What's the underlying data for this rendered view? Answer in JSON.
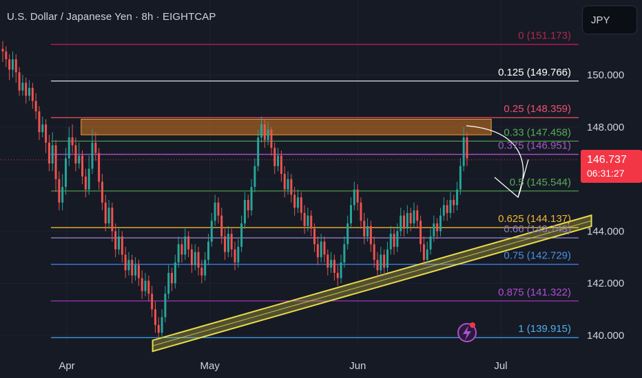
{
  "header": {
    "title": "U.S. Dollar / Japanese Yen · 8h · EIGHTCAP",
    "currency_button": "JPY"
  },
  "price_badge": {
    "price": "146.737",
    "countdown": "06:31:27",
    "color": "#f23645"
  },
  "colors": {
    "up_candle": "#26a69a",
    "down_candle": "#ef5350",
    "background": "#161a25",
    "zone": "#d4781f",
    "trendline": "#e8dc4a"
  },
  "chart_data": {
    "type": "candlestick",
    "timeframe": "8h",
    "ylim": [
      139.3,
      152.3
    ],
    "y_ticks": [
      "150.000",
      "148.000",
      "146.000",
      "144.000",
      "142.000",
      "140.000"
    ],
    "y_tick_values": [
      150,
      148,
      146,
      144,
      142,
      140
    ],
    "x_ticks": [
      "Apr",
      "May",
      "Jun",
      "Jul"
    ],
    "x_tick_days": [
      0,
      30,
      61,
      91
    ],
    "fib_levels": [
      {
        "ratio": "0",
        "price": "151.173",
        "label": "0 (151.173)",
        "value": 151.173,
        "color": "#c2185b",
        "label_color": "#b0294d"
      },
      {
        "ratio": "0.125",
        "price": "149.766",
        "label": "0.125 (149.766)",
        "value": 149.766,
        "color": "#e6e6e6",
        "label_color": "#ffffff"
      },
      {
        "ratio": "0.25",
        "price": "148.359",
        "label": "0.25 (148.359)",
        "value": 148.359,
        "color": "#e04b60",
        "label_color": "#f0506e"
      },
      {
        "ratio": "0.33",
        "price": "147.458",
        "label": "0.33 (147.458)",
        "value": 147.458,
        "color": "#4c9b4c",
        "label_color": "#5aa95a"
      },
      {
        "ratio": "0.375",
        "price": "146.951",
        "label": "0.375 (146.951)",
        "value": 146.951,
        "color": "#b04fd0",
        "label_color": "#a35bc7"
      },
      {
        "ratio": "0.5",
        "price": "145.544",
        "label": "0.5 (145.544)",
        "value": 145.544,
        "color": "#4c9b4c",
        "label_color": "#5aa95a"
      },
      {
        "ratio": "0.625",
        "price": "144.137",
        "label": "0.625 (144.137)",
        "value": 144.137,
        "color": "#f2b632",
        "label_color": "#f2b632"
      },
      {
        "ratio": "0.66",
        "price": "143.743",
        "label": "0.66 (143.743)",
        "value": 143.743,
        "color": "#9e8ad6",
        "label_color": "#8e7cc3"
      },
      {
        "ratio": "0.75",
        "price": "142.729",
        "label": "0.75 (142.729)",
        "value": 142.729,
        "color": "#3f7fe0",
        "label_color": "#4a90e2"
      },
      {
        "ratio": "0.875",
        "price": "141.322",
        "label": "0.875 (141.322)",
        "value": 141.322,
        "color": "#a035b5",
        "label_color": "#b04fd0"
      },
      {
        "ratio": "1",
        "price": "139.915",
        "label": "1 (139.915)",
        "value": 139.915,
        "color": "#3fa9f5",
        "label_color": "#4fb0ef"
      }
    ],
    "resistance_zone": {
      "from": 147.7,
      "to": 148.3,
      "x_start_day": 3,
      "x_end_day": 89
    },
    "trendline": {
      "start": {
        "day": 18,
        "price": 139.6
      },
      "end": {
        "day": 110,
        "price": 144.4
      }
    },
    "current_price": 146.737,
    "projection": "arrow from ~147.9 curving down to ~145.2",
    "candles": [
      [
        151.0,
        150.9,
        151.3,
        150.5
      ],
      [
        150.9,
        150.6,
        151.1,
        150.3
      ],
      [
        150.6,
        150.2,
        150.8,
        149.8
      ],
      [
        150.2,
        150.6,
        150.9,
        149.9
      ],
      [
        150.6,
        150.1,
        150.8,
        149.7
      ],
      [
        150.1,
        149.4,
        150.3,
        149.2
      ],
      [
        149.4,
        149.7,
        150.0,
        149.2
      ],
      [
        149.7,
        149.2,
        149.9,
        148.9
      ],
      [
        149.2,
        149.5,
        149.8,
        149.0
      ],
      [
        149.5,
        149.0,
        149.7,
        148.7
      ],
      [
        149.0,
        148.6,
        149.3,
        148.3
      ],
      [
        148.6,
        147.8,
        148.8,
        147.5
      ],
      [
        147.8,
        148.1,
        148.4,
        147.6
      ],
      [
        148.1,
        147.4,
        148.3,
        147.0
      ],
      [
        147.4,
        146.6,
        147.7,
        146.3
      ],
      [
        146.6,
        147.3,
        147.8,
        146.3
      ],
      [
        147.3,
        146.0,
        147.5,
        145.5
      ],
      [
        146.0,
        145.1,
        146.3,
        144.8
      ],
      [
        145.1,
        145.7,
        146.2,
        144.8
      ],
      [
        145.7,
        146.8,
        147.2,
        145.4
      ],
      [
        146.8,
        147.6,
        148.0,
        146.5
      ],
      [
        147.6,
        147.3,
        148.1,
        147.0
      ],
      [
        147.3,
        146.6,
        147.6,
        146.3
      ],
      [
        146.6,
        146.9,
        147.4,
        146.4
      ],
      [
        146.9,
        146.1,
        147.1,
        145.8
      ],
      [
        146.1,
        145.6,
        146.4,
        145.3
      ],
      [
        145.6,
        146.4,
        146.9,
        145.4
      ],
      [
        146.4,
        147.4,
        147.9,
        146.2
      ],
      [
        147.4,
        147.0,
        147.8,
        146.7
      ],
      [
        147.0,
        145.9,
        147.2,
        145.6
      ],
      [
        145.9,
        145.1,
        146.2,
        144.8
      ],
      [
        145.1,
        144.3,
        145.4,
        144.0
      ],
      [
        144.3,
        144.9,
        145.2,
        144.1
      ],
      [
        144.9,
        144.0,
        145.1,
        143.6
      ],
      [
        144.0,
        143.3,
        144.3,
        143.0
      ],
      [
        143.3,
        143.8,
        144.1,
        143.1
      ],
      [
        143.8,
        143.1,
        144.0,
        142.8
      ],
      [
        143.1,
        142.5,
        143.4,
        142.2
      ],
      [
        142.5,
        142.9,
        143.2,
        142.3
      ],
      [
        142.9,
        142.3,
        143.1,
        142.0
      ],
      [
        142.3,
        142.7,
        143.0,
        142.1
      ],
      [
        142.7,
        142.2,
        142.9,
        141.9
      ],
      [
        142.2,
        141.7,
        142.5,
        141.4
      ],
      [
        141.7,
        142.1,
        142.4,
        141.5
      ],
      [
        142.1,
        141.6,
        142.3,
        141.3
      ],
      [
        141.6,
        141.0,
        141.9,
        140.7
      ],
      [
        141.0,
        140.4,
        141.3,
        140.1
      ],
      [
        140.4,
        140.1,
        140.7,
        139.9
      ],
      [
        140.1,
        140.7,
        141.0,
        139.9
      ],
      [
        140.7,
        141.6,
        141.9,
        140.5
      ],
      [
        141.6,
        142.4,
        142.7,
        141.4
      ],
      [
        142.4,
        142.0,
        142.6,
        141.7
      ],
      [
        142.0,
        142.8,
        143.1,
        141.8
      ],
      [
        142.8,
        143.5,
        143.8,
        142.6
      ],
      [
        143.5,
        143.1,
        143.7,
        142.8
      ],
      [
        143.1,
        143.8,
        144.1,
        142.9
      ],
      [
        143.8,
        143.3,
        144.0,
        143.0
      ],
      [
        143.3,
        142.7,
        143.5,
        142.4
      ],
      [
        142.7,
        143.2,
        143.5,
        142.5
      ],
      [
        143.2,
        142.6,
        143.4,
        142.3
      ],
      [
        142.6,
        142.3,
        142.9,
        142.0
      ],
      [
        142.3,
        142.9,
        143.2,
        142.1
      ],
      [
        142.9,
        143.6,
        143.9,
        142.7
      ],
      [
        143.6,
        144.4,
        144.7,
        143.4
      ],
      [
        144.4,
        145.1,
        145.4,
        144.2
      ],
      [
        145.1,
        144.6,
        145.3,
        144.3
      ],
      [
        144.6,
        143.8,
        144.9,
        143.5
      ],
      [
        143.8,
        143.2,
        144.1,
        142.9
      ],
      [
        143.2,
        143.9,
        144.2,
        143.0
      ],
      [
        143.9,
        143.3,
        144.1,
        143.0
      ],
      [
        143.3,
        142.8,
        143.6,
        142.5
      ],
      [
        142.8,
        143.4,
        143.7,
        142.6
      ],
      [
        143.4,
        144.3,
        144.6,
        143.2
      ],
      [
        144.3,
        145.2,
        145.5,
        144.1
      ],
      [
        145.2,
        144.8,
        145.4,
        144.5
      ],
      [
        144.8,
        145.7,
        146.0,
        144.6
      ],
      [
        145.7,
        146.5,
        146.8,
        145.5
      ],
      [
        146.5,
        147.6,
        147.9,
        146.3
      ],
      [
        147.6,
        148.1,
        148.4,
        147.4
      ],
      [
        148.1,
        147.5,
        148.3,
        147.2
      ],
      [
        147.5,
        147.9,
        148.2,
        147.3
      ],
      [
        147.9,
        147.2,
        148.0,
        146.9
      ],
      [
        147.2,
        146.5,
        147.4,
        146.2
      ],
      [
        146.5,
        146.9,
        147.2,
        146.3
      ],
      [
        146.9,
        146.2,
        147.1,
        145.9
      ],
      [
        146.2,
        145.6,
        146.5,
        145.3
      ],
      [
        145.6,
        146.0,
        146.3,
        145.4
      ],
      [
        146.0,
        145.4,
        146.2,
        145.1
      ],
      [
        145.4,
        144.9,
        145.7,
        144.6
      ],
      [
        144.9,
        145.3,
        145.6,
        144.7
      ],
      [
        145.3,
        144.7,
        145.5,
        144.4
      ],
      [
        144.7,
        144.2,
        145.0,
        143.9
      ],
      [
        144.2,
        144.6,
        144.9,
        144.0
      ],
      [
        144.6,
        144.1,
        144.8,
        143.8
      ],
      [
        144.1,
        143.5,
        144.3,
        143.2
      ],
      [
        143.5,
        143.0,
        143.8,
        142.7
      ],
      [
        143.0,
        143.6,
        143.9,
        142.8
      ],
      [
        143.6,
        143.1,
        143.8,
        142.8
      ],
      [
        143.1,
        142.6,
        143.3,
        142.3
      ],
      [
        142.6,
        142.9,
        143.2,
        142.4
      ],
      [
        142.9,
        142.4,
        143.1,
        142.1
      ],
      [
        142.4,
        142.2,
        142.7,
        141.9
      ],
      [
        142.2,
        142.8,
        143.1,
        142.0
      ],
      [
        142.8,
        143.5,
        143.8,
        142.6
      ],
      [
        143.5,
        144.3,
        144.6,
        143.3
      ],
      [
        144.3,
        145.0,
        145.3,
        144.1
      ],
      [
        145.0,
        145.6,
        145.9,
        144.8
      ],
      [
        145.6,
        145.1,
        145.8,
        144.8
      ],
      [
        145.1,
        144.4,
        145.3,
        144.1
      ],
      [
        144.4,
        143.8,
        144.7,
        143.5
      ],
      [
        143.8,
        144.2,
        144.5,
        143.6
      ],
      [
        144.2,
        143.5,
        144.4,
        143.2
      ],
      [
        143.5,
        142.9,
        143.8,
        142.6
      ],
      [
        142.9,
        142.5,
        143.2,
        142.2
      ],
      [
        142.5,
        143.1,
        143.4,
        142.3
      ],
      [
        143.1,
        142.6,
        143.3,
        142.3
      ],
      [
        142.6,
        143.3,
        143.6,
        142.4
      ],
      [
        143.3,
        143.9,
        144.2,
        143.1
      ],
      [
        143.9,
        143.4,
        144.1,
        143.1
      ],
      [
        143.4,
        144.0,
        144.3,
        143.2
      ],
      [
        144.0,
        144.6,
        144.9,
        143.8
      ],
      [
        144.6,
        144.1,
        144.8,
        143.8
      ],
      [
        144.1,
        144.7,
        145.0,
        143.9
      ],
      [
        144.7,
        144.3,
        144.9,
        144.0
      ],
      [
        144.3,
        144.8,
        145.1,
        144.1
      ],
      [
        144.8,
        144.4,
        145.0,
        144.1
      ],
      [
        144.4,
        143.5,
        144.6,
        143.2
      ],
      [
        143.5,
        142.9,
        143.8,
        142.7
      ],
      [
        142.9,
        143.3,
        143.6,
        142.8
      ],
      [
        143.3,
        143.8,
        144.1,
        143.1
      ],
      [
        143.8,
        144.3,
        144.6,
        143.6
      ],
      [
        144.3,
        144.0,
        144.5,
        143.7
      ],
      [
        144.0,
        144.6,
        144.9,
        143.8
      ],
      [
        144.6,
        145.0,
        145.3,
        144.4
      ],
      [
        145.0,
        144.7,
        145.2,
        144.4
      ],
      [
        144.7,
        145.2,
        145.5,
        144.5
      ],
      [
        145.2,
        145.0,
        145.4,
        144.7
      ],
      [
        145.0,
        145.6,
        145.9,
        144.8
      ],
      [
        145.6,
        146.5,
        146.8,
        145.4
      ],
      [
        146.5,
        147.6,
        148.0,
        146.3
      ],
      [
        147.6,
        146.8,
        147.8,
        146.5
      ]
    ]
  },
  "annotations": {
    "alert_icon": "lightning-alert-icon"
  }
}
